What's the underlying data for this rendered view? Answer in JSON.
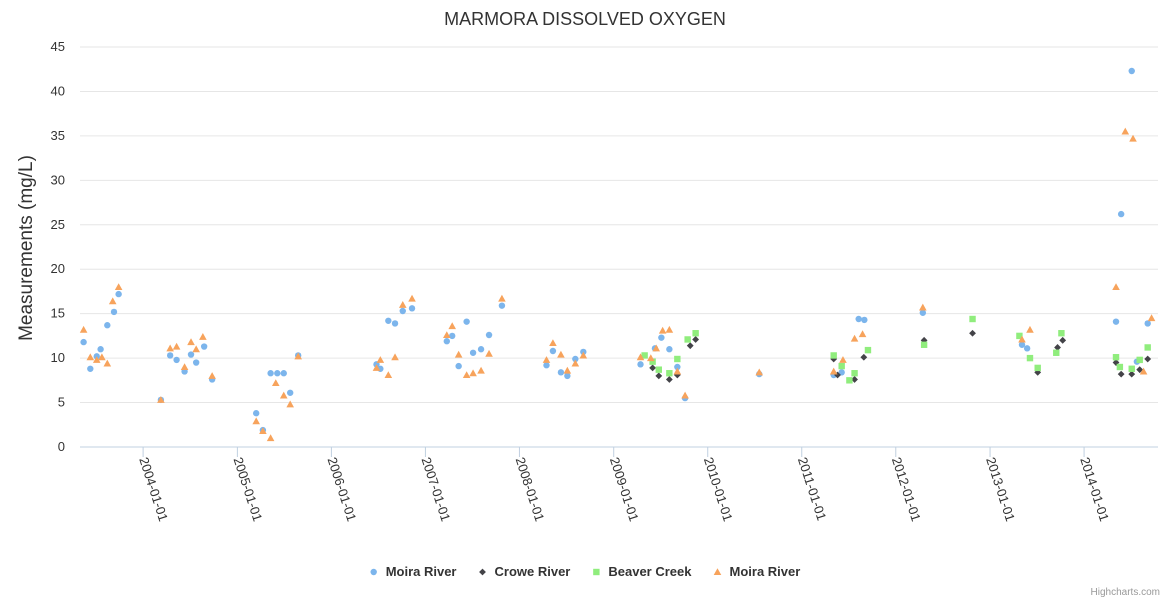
{
  "chart_data": {
    "type": "scatter",
    "title": "MARMORA DISSOLVED OXYGEN",
    "xlabel": "",
    "ylabel": "Measurements (mg/L)",
    "ylim": [
      0,
      45
    ],
    "yticks": [
      0,
      5,
      10,
      15,
      20,
      25,
      30,
      35,
      40,
      45
    ],
    "xlim": [
      "2003-05-01",
      "2014-10-15"
    ],
    "xticks": [
      "2004-01-01",
      "2005-01-01",
      "2006-01-01",
      "2007-01-01",
      "2008-01-01",
      "2009-01-01",
      "2010-01-01",
      "2011-01-01",
      "2012-01-01",
      "2013-01-01",
      "2014-01-01"
    ],
    "grid": true,
    "legend_position": "bottom-center",
    "credits": "Highcharts.com",
    "series": [
      {
        "name": "Moira River",
        "marker": "circle",
        "color": "#7cb5ec",
        "points": [
          [
            "2003-05-15",
            11.8
          ],
          [
            "2003-06-10",
            8.8
          ],
          [
            "2003-07-05",
            10.2
          ],
          [
            "2003-07-20",
            11.0
          ],
          [
            "2003-08-15",
            13.7
          ],
          [
            "2003-09-10",
            15.2
          ],
          [
            "2003-09-28",
            17.2
          ],
          [
            "2004-03-10",
            5.3
          ],
          [
            "2004-04-15",
            10.3
          ],
          [
            "2004-05-10",
            9.8
          ],
          [
            "2004-06-10",
            8.5
          ],
          [
            "2004-07-05",
            10.4
          ],
          [
            "2004-07-25",
            9.5
          ],
          [
            "2004-08-25",
            11.3
          ],
          [
            "2004-09-25",
            7.6
          ],
          [
            "2005-03-15",
            3.8
          ],
          [
            "2005-04-10",
            1.9
          ],
          [
            "2005-05-10",
            8.3
          ],
          [
            "2005-06-05",
            8.3
          ],
          [
            "2005-06-30",
            8.3
          ],
          [
            "2005-07-25",
            6.1
          ],
          [
            "2005-08-25",
            10.3
          ],
          [
            "2006-06-25",
            9.3
          ],
          [
            "2006-07-10",
            8.8
          ],
          [
            "2006-08-10",
            14.2
          ],
          [
            "2006-09-05",
            13.9
          ],
          [
            "2006-10-05",
            15.3
          ],
          [
            "2006-11-10",
            15.6
          ],
          [
            "2007-03-25",
            11.9
          ],
          [
            "2007-04-15",
            12.5
          ],
          [
            "2007-05-10",
            9.1
          ],
          [
            "2007-06-10",
            14.1
          ],
          [
            "2007-07-05",
            10.6
          ],
          [
            "2007-08-05",
            11.0
          ],
          [
            "2007-09-05",
            12.6
          ],
          [
            "2007-10-25",
            15.9
          ],
          [
            "2008-04-15",
            9.2
          ],
          [
            "2008-05-10",
            10.8
          ],
          [
            "2008-06-10",
            8.4
          ],
          [
            "2008-07-05",
            8.0
          ],
          [
            "2008-08-05",
            9.9
          ],
          [
            "2008-09-05",
            10.7
          ],
          [
            "2009-04-15",
            9.3
          ],
          [
            "2009-06-10",
            11.1
          ],
          [
            "2009-07-05",
            12.3
          ],
          [
            "2009-08-05",
            11.0
          ],
          [
            "2009-09-05",
            9.0
          ],
          [
            "2009-10-05",
            5.5
          ],
          [
            "2010-07-20",
            8.2
          ],
          [
            "2011-05-05",
            8.1
          ],
          [
            "2011-06-05",
            8.4
          ],
          [
            "2011-08-10",
            14.4
          ],
          [
            "2011-09-01",
            14.3
          ],
          [
            "2012-04-15",
            15.1
          ],
          [
            "2013-05-05",
            11.5
          ],
          [
            "2013-05-25",
            11.1
          ],
          [
            "2014-05-05",
            14.1
          ],
          [
            "2014-05-25",
            26.2
          ],
          [
            "2014-07-05",
            42.3
          ],
          [
            "2014-07-25",
            9.6
          ],
          [
            "2014-09-05",
            13.9
          ]
        ]
      },
      {
        "name": "Crowe River",
        "marker": "diamond",
        "color": "#434348",
        "points": [
          [
            "2009-06-01",
            8.9
          ],
          [
            "2009-06-25",
            8.0
          ],
          [
            "2009-08-05",
            7.6
          ],
          [
            "2009-09-05",
            8.1
          ],
          [
            "2009-10-25",
            11.4
          ],
          [
            "2009-11-15",
            12.1
          ],
          [
            "2011-05-05",
            9.9
          ],
          [
            "2011-05-20",
            8.1
          ],
          [
            "2011-07-25",
            7.6
          ],
          [
            "2011-08-30",
            10.1
          ],
          [
            "2012-04-20",
            12.0
          ],
          [
            "2012-10-25",
            12.8
          ],
          [
            "2013-07-05",
            8.4
          ],
          [
            "2013-09-20",
            11.2
          ],
          [
            "2013-10-10",
            12.0
          ],
          [
            "2014-05-05",
            9.5
          ],
          [
            "2014-05-25",
            8.2
          ],
          [
            "2014-07-05",
            8.2
          ],
          [
            "2014-08-05",
            8.7
          ],
          [
            "2014-09-05",
            9.9
          ]
        ]
      },
      {
        "name": "Beaver Creek",
        "marker": "square",
        "color": "#90ed7d",
        "points": [
          [
            "2009-05-01",
            10.3
          ],
          [
            "2009-06-01",
            9.6
          ],
          [
            "2009-06-25",
            8.7
          ],
          [
            "2009-08-05",
            8.3
          ],
          [
            "2009-09-05",
            9.9
          ],
          [
            "2009-10-15",
            12.1
          ],
          [
            "2009-11-15",
            12.8
          ],
          [
            "2011-05-05",
            10.3
          ],
          [
            "2011-06-05",
            9.1
          ],
          [
            "2011-07-05",
            7.5
          ],
          [
            "2011-07-25",
            8.3
          ],
          [
            "2011-09-15",
            10.9
          ],
          [
            "2012-04-20",
            11.5
          ],
          [
            "2012-10-25",
            14.4
          ],
          [
            "2013-04-25",
            12.5
          ],
          [
            "2013-06-05",
            10.0
          ],
          [
            "2013-07-05",
            8.9
          ],
          [
            "2013-09-15",
            10.6
          ],
          [
            "2013-10-05",
            12.8
          ],
          [
            "2014-05-05",
            10.1
          ],
          [
            "2014-05-20",
            9.0
          ],
          [
            "2014-07-05",
            8.8
          ],
          [
            "2014-08-05",
            9.8
          ],
          [
            "2014-09-05",
            11.2
          ]
        ]
      },
      {
        "name": "Moira River",
        "marker": "triangle",
        "color": "#f7a35c",
        "points": [
          [
            "2003-05-15",
            13.2
          ],
          [
            "2003-06-10",
            10.1
          ],
          [
            "2003-07-05",
            9.8
          ],
          [
            "2003-07-25",
            10.1
          ],
          [
            "2003-08-15",
            9.4
          ],
          [
            "2003-09-05",
            16.4
          ],
          [
            "2003-09-28",
            18.0
          ],
          [
            "2004-03-10",
            5.3
          ],
          [
            "2004-04-15",
            11.1
          ],
          [
            "2004-05-10",
            11.3
          ],
          [
            "2004-06-10",
            9.0
          ],
          [
            "2004-07-05",
            11.8
          ],
          [
            "2004-07-25",
            11.0
          ],
          [
            "2004-08-20",
            12.4
          ],
          [
            "2004-09-25",
            8.0
          ],
          [
            "2005-03-15",
            2.9
          ],
          [
            "2005-04-10",
            1.8
          ],
          [
            "2005-05-10",
            1.0
          ],
          [
            "2005-05-30",
            7.2
          ],
          [
            "2005-06-30",
            5.8
          ],
          [
            "2005-07-25",
            4.8
          ],
          [
            "2005-08-25",
            10.2
          ],
          [
            "2006-06-25",
            8.9
          ],
          [
            "2006-07-10",
            9.8
          ],
          [
            "2006-08-10",
            8.1
          ],
          [
            "2006-09-05",
            10.1
          ],
          [
            "2006-10-05",
            16.0
          ],
          [
            "2006-11-10",
            16.7
          ],
          [
            "2007-03-25",
            12.6
          ],
          [
            "2007-04-15",
            13.6
          ],
          [
            "2007-05-10",
            10.4
          ],
          [
            "2007-06-10",
            8.1
          ],
          [
            "2007-07-05",
            8.3
          ],
          [
            "2007-08-05",
            8.6
          ],
          [
            "2007-09-05",
            10.5
          ],
          [
            "2007-10-25",
            16.7
          ],
          [
            "2008-04-15",
            9.8
          ],
          [
            "2008-05-10",
            11.7
          ],
          [
            "2008-06-10",
            10.4
          ],
          [
            "2008-07-05",
            8.6
          ],
          [
            "2008-08-05",
            9.4
          ],
          [
            "2008-09-05",
            10.3
          ],
          [
            "2009-04-15",
            10.1
          ],
          [
            "2009-05-25",
            10.0
          ],
          [
            "2009-06-15",
            11.1
          ],
          [
            "2009-07-10",
            13.1
          ],
          [
            "2009-08-05",
            13.2
          ],
          [
            "2009-09-05",
            8.5
          ],
          [
            "2009-10-05",
            5.8
          ],
          [
            "2010-07-20",
            8.4
          ],
          [
            "2011-05-05",
            8.5
          ],
          [
            "2011-06-10",
            9.8
          ],
          [
            "2011-07-25",
            12.2
          ],
          [
            "2011-08-25",
            12.7
          ],
          [
            "2012-04-15",
            15.7
          ],
          [
            "2013-05-05",
            12.1
          ],
          [
            "2013-06-05",
            13.2
          ],
          [
            "2014-05-05",
            18.0
          ],
          [
            "2014-06-10",
            35.5
          ],
          [
            "2014-07-10",
            34.7
          ],
          [
            "2014-08-20",
            8.5
          ],
          [
            "2014-09-20",
            14.5
          ]
        ]
      }
    ]
  }
}
